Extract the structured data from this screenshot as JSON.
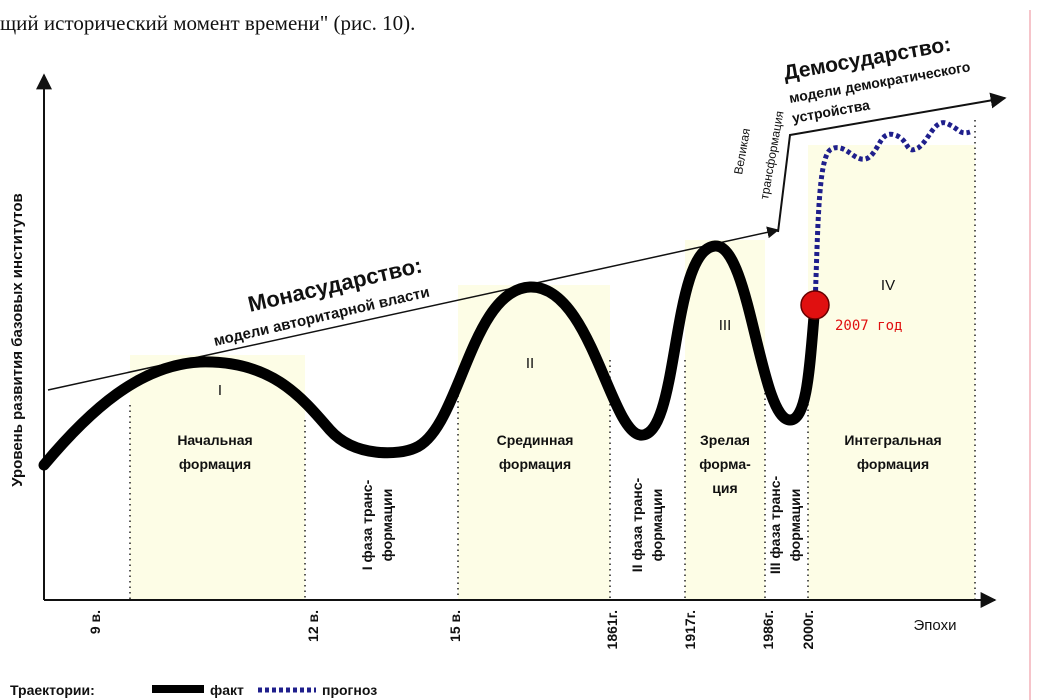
{
  "caption": "щий исторический момент времени\" (рис. 10).",
  "y_axis_label": "Уровень развития базовых институтов",
  "x_axis_label": "Эпохи",
  "x_labels": [
    "9 в.",
    "12 в.",
    "15 в.",
    "1861г.",
    "1917г.",
    "1986г.",
    "2000г."
  ],
  "monarchy": {
    "title": "Монасударство:",
    "subtitle": "модели авторитарной власти"
  },
  "democracy": {
    "title": "Демосударство:",
    "subtitle": [
      "модели демократического",
      "устройства"
    ]
  },
  "great_transformation": [
    "Великая",
    "трансформация"
  ],
  "formations": [
    {
      "numeral": "I",
      "label": [
        "Начальная",
        "формация"
      ]
    },
    {
      "numeral": "II",
      "label": [
        "Срединная",
        "формация"
      ]
    },
    {
      "numeral": "III",
      "label": [
        "Зрелая",
        "форма-",
        "ция"
      ]
    },
    {
      "numeral": "IV",
      "label": [
        "Интегральная",
        "формация"
      ]
    }
  ],
  "phases": [
    [
      "I фаза транс-",
      "формации"
    ],
    [
      "II фаза транс-",
      "формации"
    ],
    [
      "III фаза транс-",
      "формации"
    ]
  ],
  "marker": "2007 год",
  "legend": {
    "title": "Траектории:",
    "fact": "факт",
    "forecast": "прогноз"
  }
}
